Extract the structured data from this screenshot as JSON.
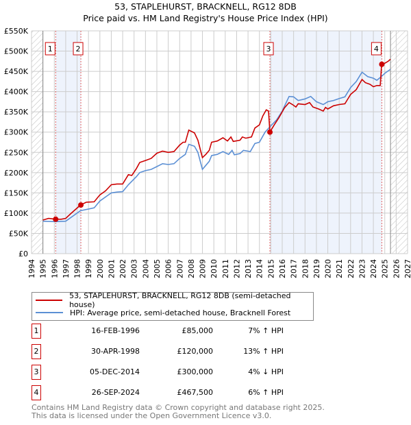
{
  "chart_data": {
    "type": "line",
    "title": "53, STAPLEHURST, BRACKNELL, RG12 8DB",
    "subtitle": "Price paid vs. HM Land Registry's House Price Index (HPI)",
    "xlim": [
      1994,
      2027
    ],
    "ylim": [
      0,
      550000
    ],
    "x_ticks": [
      "1994",
      "1995",
      "1996",
      "1997",
      "1998",
      "1999",
      "2000",
      "2001",
      "2002",
      "2003",
      "2004",
      "2005",
      "2006",
      "2007",
      "2008",
      "2009",
      "2010",
      "2011",
      "2012",
      "2013",
      "2014",
      "2015",
      "2016",
      "2017",
      "2018",
      "2019",
      "2020",
      "2021",
      "2022",
      "2023",
      "2024",
      "2025",
      "2026",
      "2027"
    ],
    "y_ticks": [
      {
        "v": 0,
        "label": "£0"
      },
      {
        "v": 50000,
        "label": "£50K"
      },
      {
        "v": 100000,
        "label": "£100K"
      },
      {
        "v": 150000,
        "label": "£150K"
      },
      {
        "v": 200000,
        "label": "£200K"
      },
      {
        "v": 250000,
        "label": "£250K"
      },
      {
        "v": 300000,
        "label": "£300K"
      },
      {
        "v": 350000,
        "label": "£350K"
      },
      {
        "v": 400000,
        "label": "£400K"
      },
      {
        "v": 450000,
        "label": "£450K"
      },
      {
        "v": 500000,
        "label": "£500K"
      },
      {
        "v": 550000,
        "label": "£550K"
      }
    ],
    "grid": true,
    "data_range": [
      1995,
      2025.5
    ],
    "series": [
      {
        "name": "53, STAPLEHURST, BRACKNELL, RG12 8DB (semi-detached house)",
        "color": "#cc0000",
        "x": [
          1995,
          1995.5,
          1996.1,
          1996.6,
          1997,
          1997.5,
          1998.3,
          1998.8,
          1999.5,
          2000,
          2000.5,
          2001,
          2001.5,
          2002,
          2002.5,
          2002.8,
          2003.2,
          2003.5,
          2004,
          2004.5,
          2005,
          2005.5,
          2006,
          2006.5,
          2007,
          2007.3,
          2007.5,
          2007.8,
          2008.3,
          2008.6,
          2009,
          2009.3,
          2009.6,
          2009.8,
          2010.3,
          2010.8,
          2011.2,
          2011.5,
          2011.7,
          2012.3,
          2012.5,
          2012.8,
          2013.3,
          2013.6,
          2014,
          2014.3,
          2014.6,
          2014.8,
          2014.92,
          2015.3,
          2015.7,
          2016.2,
          2016.6,
          2016.9,
          2017.2,
          2017.4,
          2018,
          2018.4,
          2018.7,
          2019.2,
          2019.6,
          2019.8,
          2020,
          2020.5,
          2021,
          2021.5,
          2022,
          2022.5,
          2023,
          2023.3,
          2023.7,
          2024,
          2024.3,
          2024.6,
          2024.72,
          2025,
          2025.3,
          2025.5
        ],
        "y": [
          83000,
          87000,
          85000,
          85000,
          87000,
          100000,
          120000,
          127000,
          128000,
          145000,
          155000,
          170000,
          172000,
          172000,
          195000,
          193000,
          210000,
          225000,
          230000,
          235000,
          248000,
          253000,
          250000,
          252000,
          268000,
          275000,
          275000,
          305000,
          298000,
          280000,
          237000,
          245000,
          255000,
          275000,
          278000,
          286000,
          278000,
          288000,
          277000,
          280000,
          288000,
          285000,
          288000,
          310000,
          318000,
          340000,
          355000,
          352000,
          300000,
          318000,
          335000,
          360000,
          373000,
          368000,
          362000,
          370000,
          368000,
          373000,
          362000,
          357000,
          352000,
          361000,
          357000,
          365000,
          368000,
          370000,
          393000,
          405000,
          430000,
          422000,
          418000,
          412000,
          415000,
          415000,
          467500,
          470000,
          475000,
          480000
        ]
      },
      {
        "name": "HPI: Average price, semi-detached house, Bracknell Forest",
        "color": "#5b8fd4",
        "x": [
          1995,
          1996.1,
          1997,
          1998.3,
          1999.5,
          2000,
          2001,
          2001.5,
          2002,
          2002.5,
          2003.2,
          2003.5,
          2004,
          2004.5,
          2005,
          2005.5,
          2006,
          2006.5,
          2007,
          2007.5,
          2007.8,
          2008.3,
          2008.6,
          2009,
          2009.3,
          2009.6,
          2009.8,
          2010.3,
          2010.8,
          2011.3,
          2011.6,
          2011.8,
          2012.3,
          2012.6,
          2013.2,
          2013.6,
          2014,
          2014.5,
          2014.92,
          2015.5,
          2016,
          2016.6,
          2017,
          2017.4,
          2018,
          2018.5,
          2019,
          2019.6,
          2020,
          2020.5,
          2021,
          2021.5,
          2022,
          2022.5,
          2023,
          2023.5,
          2024,
          2024.3,
          2024.7,
          2025,
          2025.5
        ],
        "y": [
          80000,
          79000,
          80000,
          106000,
          113000,
          130000,
          150000,
          152000,
          153000,
          170000,
          190000,
          200000,
          205000,
          208000,
          215000,
          222000,
          220000,
          222000,
          235000,
          245000,
          270000,
          265000,
          250000,
          208000,
          218000,
          228000,
          242000,
          245000,
          252000,
          245000,
          255000,
          244000,
          247000,
          255000,
          252000,
          272000,
          275000,
          300000,
          313000,
          330000,
          352000,
          388000,
          387000,
          378000,
          382000,
          388000,
          375000,
          368000,
          375000,
          378000,
          383000,
          387000,
          410000,
          425000,
          448000,
          437000,
          433000,
          428000,
          437000,
          445000,
          455000
        ]
      }
    ],
    "sales": [
      {
        "n": "1",
        "x": 1996.12,
        "price": 85000,
        "date": "16-FEB-1996",
        "price_label": "£85,000",
        "hpi": "7% ↑ HPI"
      },
      {
        "n": "2",
        "x": 1998.33,
        "price": 120000,
        "date": "30-APR-1998",
        "price_label": "£120,000",
        "hpi": "13% ↑ HPI"
      },
      {
        "n": "3",
        "x": 2014.92,
        "price": 300000,
        "date": "05-DEC-2014",
        "price_label": "£300,000",
        "hpi": "4% ↓ HPI"
      },
      {
        "n": "4",
        "x": 2024.74,
        "price": 467500,
        "date": "26-SEP-2024",
        "price_label": "£467,500",
        "hpi": "6% ↑ HPI"
      }
    ],
    "legend": [
      "53, STAPLEHURST, BRACKNELL, RG12 8DB (semi-detached house)",
      "HPI: Average price, semi-detached house, Bracknell Forest"
    ]
  },
  "footer": [
    "Contains HM Land Registry data © Crown copyright and database right 2025.",
    "This data is licensed under the Open Government Licence v3.0."
  ]
}
